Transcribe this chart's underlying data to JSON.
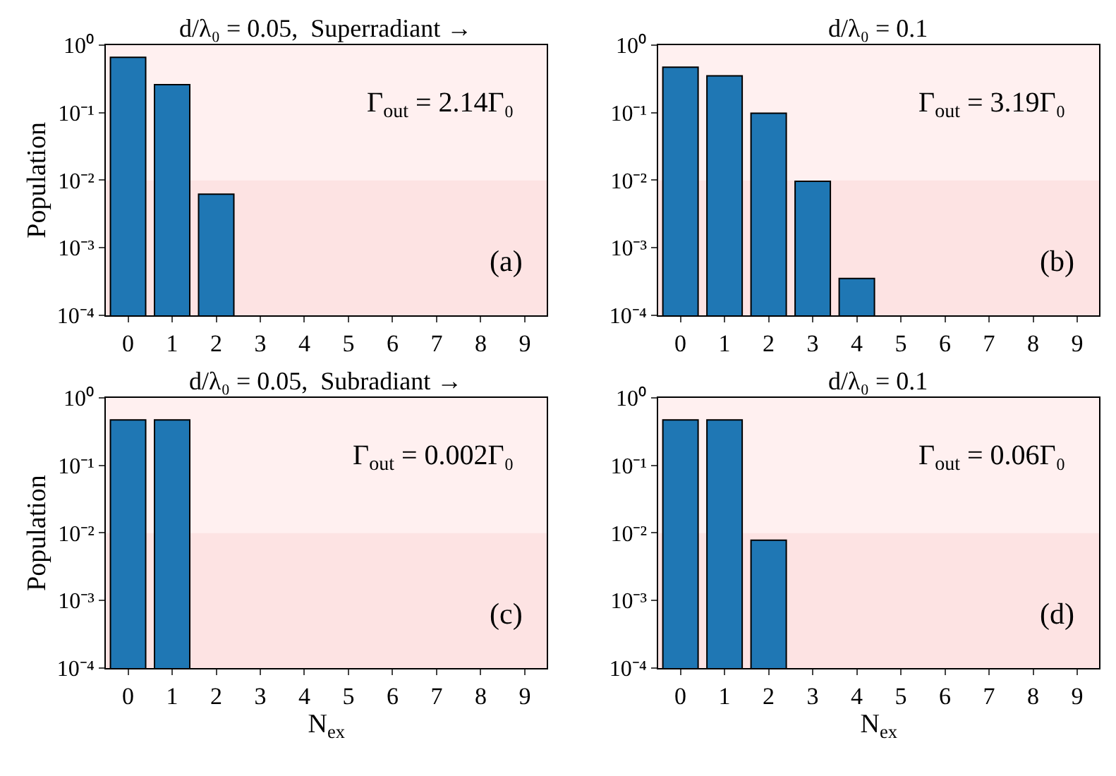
{
  "chart_data": [
    {
      "type": "bar",
      "title": "d/λ₀ = 0.05,  Superradiant →",
      "ylabel": "Population",
      "categories": [
        "0",
        "1",
        "2",
        "3",
        "4",
        "5",
        "6",
        "7",
        "8",
        "9"
      ],
      "values": [
        0.66,
        0.26,
        0.0062,
        null,
        null,
        null,
        null,
        null,
        null,
        null
      ],
      "color": "#1f77b4",
      "log": true,
      "ylim": [
        0.0001,
        1
      ],
      "yticks": [
        {
          "value": 0.0001,
          "label": "10⁻⁴"
        },
        {
          "value": 0.001,
          "label": "10⁻³"
        },
        {
          "value": 0.01,
          "label": "10⁻²"
        },
        {
          "value": 0.1,
          "label": "10⁻¹"
        },
        {
          "value": 1,
          "label": "10⁰"
        }
      ],
      "bands": [
        {
          "axis": "y",
          "from": 0.01,
          "to": 1,
          "color": "#fff0f0"
        },
        {
          "axis": "y",
          "from": 0.0001,
          "to": 0.01,
          "color": "#fde3e3"
        }
      ],
      "annotations": [
        "Γ$_{out}$ = 2.14Γ₀",
        "(a)"
      ]
    },
    {
      "type": "bar",
      "title": "d/λ₀ = 0.1",
      "categories": [
        "0",
        "1",
        "2",
        "3",
        "4",
        "5",
        "6",
        "7",
        "8",
        "9"
      ],
      "values": [
        0.47,
        0.35,
        0.098,
        0.0096,
        0.00035,
        null,
        null,
        null,
        null,
        null
      ],
      "color": "#1f77b4",
      "log": true,
      "ylim": [
        0.0001,
        1
      ],
      "yticks": [
        {
          "value": 0.0001,
          "label": "10⁻⁴"
        },
        {
          "value": 0.001,
          "label": "10⁻³"
        },
        {
          "value": 0.01,
          "label": "10⁻²"
        },
        {
          "value": 0.1,
          "label": "10⁻¹"
        },
        {
          "value": 1,
          "label": "10⁰"
        }
      ],
      "bands": [
        {
          "axis": "y",
          "from": 0.01,
          "to": 1,
          "color": "#fff0f0"
        },
        {
          "axis": "y",
          "from": 0.0001,
          "to": 0.01,
          "color": "#fde3e3"
        }
      ],
      "annotations": [
        "Γ$_{out}$ = 3.19Γ₀",
        "(b)"
      ]
    },
    {
      "type": "bar",
      "title": "d/λ₀ = 0.05,  Subradiant →",
      "ylabel": "Population",
      "xlabel": "N$_{ex}$",
      "categories": [
        "0",
        "1",
        "2",
        "3",
        "4",
        "5",
        "6",
        "7",
        "8",
        "9"
      ],
      "values": [
        0.47,
        0.47,
        null,
        null,
        null,
        null,
        null,
        null,
        null,
        null
      ],
      "color": "#1f77b4",
      "log": true,
      "ylim": [
        0.0001,
        1
      ],
      "yticks": [
        {
          "value": 0.0001,
          "label": "10⁻⁴"
        },
        {
          "value": 0.001,
          "label": "10⁻³"
        },
        {
          "value": 0.01,
          "label": "10⁻²"
        },
        {
          "value": 0.1,
          "label": "10⁻¹"
        },
        {
          "value": 1,
          "label": "10⁰"
        }
      ],
      "bands": [
        {
          "axis": "y",
          "from": 0.01,
          "to": 1,
          "color": "#fff0f0"
        },
        {
          "axis": "y",
          "from": 0.0001,
          "to": 0.01,
          "color": "#fde3e3"
        }
      ],
      "annotations": [
        "Γ$_{out}$ = 0.002Γ₀",
        "(c)"
      ]
    },
    {
      "type": "bar",
      "title": "d/λ₀ = 0.1",
      "xlabel": "N$_{ex}$",
      "categories": [
        "0",
        "1",
        "2",
        "3",
        "4",
        "5",
        "6",
        "7",
        "8",
        "9"
      ],
      "values": [
        0.47,
        0.47,
        0.0078,
        null,
        null,
        null,
        null,
        null,
        null,
        null
      ],
      "color": "#1f77b4",
      "log": true,
      "ylim": [
        0.0001,
        1
      ],
      "yticks": [
        {
          "value": 0.0001,
          "label": "10⁻⁴"
        },
        {
          "value": 0.001,
          "label": "10⁻³"
        },
        {
          "value": 0.01,
          "label": "10⁻²"
        },
        {
          "value": 0.1,
          "label": "10⁻¹"
        },
        {
          "value": 1,
          "label": "10⁰"
        }
      ],
      "bands": [
        {
          "axis": "y",
          "from": 0.01,
          "to": 1,
          "color": "#fff0f0"
        },
        {
          "axis": "y",
          "from": 0.0001,
          "to": 0.01,
          "color": "#fde3e3"
        }
      ],
      "annotations": [
        "Γ$_{out}$ = 0.06Γ₀",
        "(d)"
      ]
    }
  ]
}
